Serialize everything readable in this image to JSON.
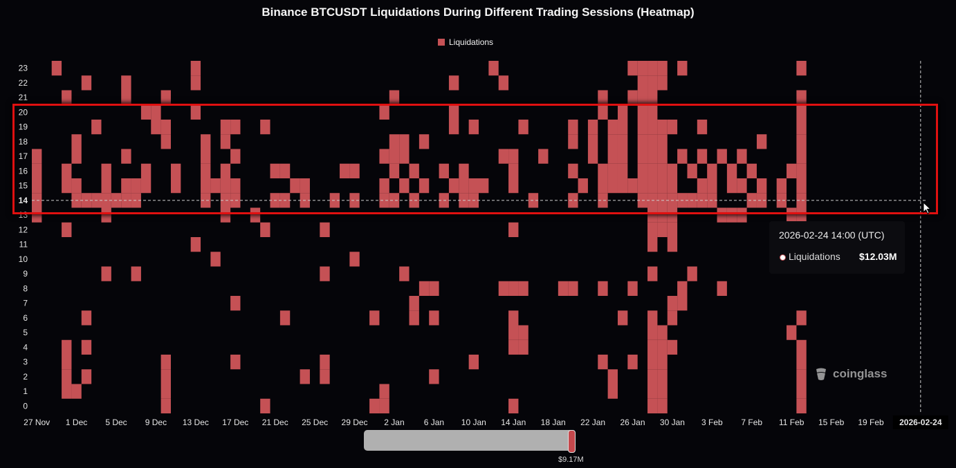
{
  "title": "Binance BTCUSDT Liquidations During Different Trading Sessions (Heatmap)",
  "legend": {
    "label": "Liquidations",
    "color": "#c55155"
  },
  "tooltip": {
    "date": "2026-02-24 14:00 (UTC)",
    "series": "Liquidations",
    "value": "$12.03M"
  },
  "watermark": {
    "text": "coinglass"
  },
  "scrollbar": {
    "value_label": "$9.17M"
  },
  "colors": {
    "background": "#050509",
    "cell": "#c55155",
    "cell_dark": "#a84448",
    "highlight": "#e01010"
  },
  "chart_data": {
    "type": "heatmap",
    "title": "Binance BTCUSDT Liquidations During Different Trading Sessions (Heatmap)",
    "series_name": "Liquidations",
    "x_start_date": "2025-11-27",
    "x_end_date": "2026-02-24",
    "x_tick_labels": [
      "27 Nov",
      "1 Dec",
      "5 Dec",
      "9 Dec",
      "13 Dec",
      "17 Dec",
      "21 Dec",
      "25 Dec",
      "29 Dec",
      "2 Jan",
      "6 Jan",
      "10 Jan",
      "14 Jan",
      "18 Jan",
      "22 Jan",
      "26 Jan",
      "30 Jan",
      "3 Feb",
      "7 Feb",
      "11 Feb",
      "15 Feb",
      "19 Feb",
      "2026-02-24"
    ],
    "y_labels": [
      "0",
      "1",
      "2",
      "3",
      "4",
      "5",
      "6",
      "7",
      "8",
      "9",
      "10",
      "11",
      "12",
      "13",
      "14",
      "15",
      "16",
      "17",
      "18",
      "19",
      "20",
      "21",
      "22",
      "23"
    ],
    "active_y": "14",
    "highlighted_x": "2026-02-24",
    "highlighted_hour": "14",
    "highlighted_value": "$12.03M",
    "cells": [
      [
        "2025-11-27",
        13
      ],
      [
        "2025-11-27",
        14
      ],
      [
        "2025-11-27",
        15
      ],
      [
        "2025-11-27",
        16
      ],
      [
        "2025-11-27",
        17
      ],
      [
        "2025-11-29",
        23
      ],
      [
        "2025-11-30",
        1
      ],
      [
        "2025-11-30",
        2
      ],
      [
        "2025-11-30",
        3
      ],
      [
        "2025-11-30",
        4
      ],
      [
        "2025-11-30",
        12
      ],
      [
        "2025-11-30",
        15
      ],
      [
        "2025-11-30",
        16
      ],
      [
        "2025-11-30",
        21
      ],
      [
        "2025-12-01",
        1
      ],
      [
        "2025-12-01",
        14
      ],
      [
        "2025-12-01",
        15
      ],
      [
        "2025-12-01",
        17
      ],
      [
        "2025-12-01",
        18
      ],
      [
        "2025-12-02",
        2
      ],
      [
        "2025-12-02",
        4
      ],
      [
        "2025-12-02",
        6
      ],
      [
        "2025-12-02",
        14
      ],
      [
        "2025-12-02",
        22
      ],
      [
        "2025-12-03",
        14
      ],
      [
        "2025-12-03",
        19
      ],
      [
        "2025-12-04",
        9
      ],
      [
        "2025-12-04",
        13
      ],
      [
        "2025-12-04",
        14
      ],
      [
        "2025-12-04",
        15
      ],
      [
        "2025-12-04",
        16
      ],
      [
        "2025-12-05",
        14
      ],
      [
        "2025-12-06",
        14
      ],
      [
        "2025-12-06",
        15
      ],
      [
        "2025-12-06",
        17
      ],
      [
        "2025-12-06",
        21
      ],
      [
        "2025-12-06",
        22
      ],
      [
        "2025-12-07",
        9
      ],
      [
        "2025-12-07",
        14
      ],
      [
        "2025-12-07",
        15
      ],
      [
        "2025-12-08",
        15
      ],
      [
        "2025-12-08",
        16
      ],
      [
        "2025-12-08",
        20
      ],
      [
        "2025-12-09",
        19
      ],
      [
        "2025-12-09",
        20
      ],
      [
        "2025-12-10",
        0
      ],
      [
        "2025-12-10",
        1
      ],
      [
        "2025-12-10",
        2
      ],
      [
        "2025-12-10",
        3
      ],
      [
        "2025-12-10",
        18
      ],
      [
        "2025-12-10",
        19
      ],
      [
        "2025-12-10",
        21
      ],
      [
        "2025-12-11",
        15
      ],
      [
        "2025-12-11",
        16
      ],
      [
        "2025-12-13",
        11
      ],
      [
        "2025-12-13",
        20
      ],
      [
        "2025-12-13",
        22
      ],
      [
        "2025-12-13",
        23
      ],
      [
        "2025-12-14",
        14
      ],
      [
        "2025-12-14",
        15
      ],
      [
        "2025-12-14",
        16
      ],
      [
        "2025-12-14",
        17
      ],
      [
        "2025-12-14",
        18
      ],
      [
        "2025-12-15",
        10
      ],
      [
        "2025-12-15",
        15
      ],
      [
        "2025-12-16",
        13
      ],
      [
        "2025-12-16",
        14
      ],
      [
        "2025-12-16",
        15
      ],
      [
        "2025-12-16",
        16
      ],
      [
        "2025-12-16",
        18
      ],
      [
        "2025-12-16",
        19
      ],
      [
        "2025-12-17",
        7
      ],
      [
        "2025-12-17",
        3
      ],
      [
        "2025-12-17",
        14
      ],
      [
        "2025-12-17",
        15
      ],
      [
        "2025-12-17",
        17
      ],
      [
        "2025-12-17",
        19
      ],
      [
        "2025-12-19",
        13
      ],
      [
        "2025-12-20",
        0
      ],
      [
        "2025-12-20",
        12
      ],
      [
        "2025-12-20",
        19
      ],
      [
        "2025-12-21",
        14
      ],
      [
        "2025-12-21",
        16
      ],
      [
        "2025-12-22",
        6
      ],
      [
        "2025-12-22",
        14
      ],
      [
        "2025-12-22",
        16
      ],
      [
        "2025-12-23",
        15
      ],
      [
        "2025-12-24",
        2
      ],
      [
        "2025-12-24",
        14
      ],
      [
        "2025-12-24",
        15
      ],
      [
        "2025-12-26",
        3
      ],
      [
        "2025-12-26",
        2
      ],
      [
        "2025-12-26",
        9
      ],
      [
        "2025-12-26",
        12
      ],
      [
        "2025-12-27",
        14
      ],
      [
        "2025-12-28",
        16
      ],
      [
        "2025-12-29",
        10
      ],
      [
        "2025-12-29",
        14
      ],
      [
        "2025-12-29",
        16
      ],
      [
        "2025-12-31",
        0
      ],
      [
        "2025-12-31",
        6
      ],
      [
        "2026-01-01",
        0
      ],
      [
        "2026-01-01",
        1
      ],
      [
        "2026-01-01",
        14
      ],
      [
        "2026-01-01",
        15
      ],
      [
        "2026-01-01",
        17
      ],
      [
        "2026-01-01",
        20
      ],
      [
        "2026-01-02",
        14
      ],
      [
        "2026-01-02",
        16
      ],
      [
        "2026-01-02",
        17
      ],
      [
        "2026-01-02",
        18
      ],
      [
        "2026-01-02",
        21
      ],
      [
        "2026-01-03",
        9
      ],
      [
        "2026-01-03",
        15
      ],
      [
        "2026-01-03",
        17
      ],
      [
        "2026-01-03",
        18
      ],
      [
        "2026-01-04",
        7
      ],
      [
        "2026-01-04",
        6
      ],
      [
        "2026-01-04",
        14
      ],
      [
        "2026-01-04",
        16
      ],
      [
        "2026-01-05",
        8
      ],
      [
        "2026-01-05",
        15
      ],
      [
        "2026-01-05",
        18
      ],
      [
        "2026-01-06",
        6
      ],
      [
        "2026-01-06",
        2
      ],
      [
        "2026-01-06",
        8
      ],
      [
        "2026-01-07",
        14
      ],
      [
        "2026-01-07",
        16
      ],
      [
        "2026-01-08",
        15
      ],
      [
        "2026-01-08",
        19
      ],
      [
        "2026-01-08",
        20
      ],
      [
        "2026-01-08",
        22
      ],
      [
        "2026-01-09",
        14
      ],
      [
        "2026-01-09",
        15
      ],
      [
        "2026-01-09",
        16
      ],
      [
        "2026-01-10",
        3
      ],
      [
        "2026-01-10",
        14
      ],
      [
        "2026-01-10",
        15
      ],
      [
        "2026-01-10",
        19
      ],
      [
        "2026-01-11",
        15
      ],
      [
        "2026-01-12",
        23
      ],
      [
        "2026-01-13",
        8
      ],
      [
        "2026-01-13",
        17
      ],
      [
        "2026-01-13",
        22
      ],
      [
        "2026-01-14",
        0
      ],
      [
        "2026-01-14",
        4
      ],
      [
        "2026-01-14",
        5
      ],
      [
        "2026-01-14",
        6
      ],
      [
        "2026-01-14",
        8
      ],
      [
        "2026-01-14",
        12
      ],
      [
        "2026-01-14",
        15
      ],
      [
        "2026-01-14",
        16
      ],
      [
        "2026-01-14",
        17
      ],
      [
        "2026-01-15",
        4
      ],
      [
        "2026-01-15",
        5
      ],
      [
        "2026-01-15",
        8
      ],
      [
        "2026-01-15",
        19
      ],
      [
        "2026-01-16",
        14
      ],
      [
        "2026-01-17",
        17
      ],
      [
        "2026-01-19",
        8
      ],
      [
        "2026-01-20",
        8
      ],
      [
        "2026-01-20",
        14
      ],
      [
        "2026-01-20",
        16
      ],
      [
        "2026-01-20",
        18
      ],
      [
        "2026-01-20",
        19
      ],
      [
        "2026-01-21",
        15
      ],
      [
        "2026-01-22",
        17
      ],
      [
        "2026-01-22",
        18
      ],
      [
        "2026-01-22",
        19
      ],
      [
        "2026-01-23",
        8
      ],
      [
        "2026-01-23",
        3
      ],
      [
        "2026-01-23",
        14
      ],
      [
        "2026-01-23",
        15
      ],
      [
        "2026-01-23",
        16
      ],
      [
        "2026-01-23",
        20
      ],
      [
        "2026-01-23",
        21
      ],
      [
        "2026-01-24",
        1
      ],
      [
        "2026-01-24",
        2
      ],
      [
        "2026-01-24",
        15
      ],
      [
        "2026-01-24",
        16
      ],
      [
        "2026-01-24",
        17
      ],
      [
        "2026-01-24",
        18
      ],
      [
        "2026-01-24",
        19
      ],
      [
        "2026-01-25",
        6
      ],
      [
        "2026-01-25",
        15
      ],
      [
        "2026-01-25",
        16
      ],
      [
        "2026-01-25",
        17
      ],
      [
        "2026-01-25",
        18
      ],
      [
        "2026-01-25",
        19
      ],
      [
        "2026-01-25",
        20
      ],
      [
        "2026-01-26",
        8
      ],
      [
        "2026-01-26",
        3
      ],
      [
        "2026-01-26",
        15
      ],
      [
        "2026-01-26",
        23
      ],
      [
        "2026-01-26",
        21
      ],
      [
        "2026-01-27",
        14
      ],
      [
        "2026-01-27",
        15
      ],
      [
        "2026-01-27",
        16
      ],
      [
        "2026-01-27",
        17
      ],
      [
        "2026-01-27",
        18
      ],
      [
        "2026-01-27",
        19
      ],
      [
        "2026-01-27",
        20
      ],
      [
        "2026-01-27",
        21
      ],
      [
        "2026-01-27",
        22
      ],
      [
        "2026-01-27",
        23
      ],
      [
        "2026-01-28",
        0
      ],
      [
        "2026-01-28",
        1
      ],
      [
        "2026-01-28",
        2
      ],
      [
        "2026-01-28",
        3
      ],
      [
        "2026-01-28",
        4
      ],
      [
        "2026-01-28",
        5
      ],
      [
        "2026-01-28",
        6
      ],
      [
        "2026-01-28",
        9
      ],
      [
        "2026-01-28",
        11
      ],
      [
        "2026-01-28",
        12
      ],
      [
        "2026-01-28",
        13
      ],
      [
        "2026-01-28",
        14
      ],
      [
        "2026-01-28",
        15
      ],
      [
        "2026-01-28",
        16
      ],
      [
        "2026-01-28",
        17
      ],
      [
        "2026-01-28",
        18
      ],
      [
        "2026-01-28",
        19
      ],
      [
        "2026-01-28",
        20
      ],
      [
        "2026-01-28",
        21
      ],
      [
        "2026-01-28",
        22
      ],
      [
        "2026-01-28",
        23
      ],
      [
        "2026-01-29",
        0
      ],
      [
        "2026-01-29",
        1
      ],
      [
        "2026-01-29",
        2
      ],
      [
        "2026-01-29",
        3
      ],
      [
        "2026-01-29",
        4
      ],
      [
        "2026-01-29",
        5
      ],
      [
        "2026-01-29",
        12
      ],
      [
        "2026-01-29",
        13
      ],
      [
        "2026-01-29",
        14
      ],
      [
        "2026-01-29",
        15
      ],
      [
        "2026-01-29",
        16
      ],
      [
        "2026-01-29",
        17
      ],
      [
        "2026-01-29",
        18
      ],
      [
        "2026-01-29",
        19
      ],
      [
        "2026-01-29",
        22
      ],
      [
        "2026-01-29",
        23
      ],
      [
        "2026-01-30",
        7
      ],
      [
        "2026-01-30",
        4
      ],
      [
        "2026-01-30",
        6
      ],
      [
        "2026-01-30",
        11
      ],
      [
        "2026-01-30",
        12
      ],
      [
        "2026-01-30",
        13
      ],
      [
        "2026-01-30",
        14
      ],
      [
        "2026-01-30",
        15
      ],
      [
        "2026-01-30",
        16
      ],
      [
        "2026-01-30",
        19
      ],
      [
        "2026-01-31",
        8
      ],
      [
        "2026-01-31",
        7
      ],
      [
        "2026-01-31",
        14
      ],
      [
        "2026-01-31",
        17
      ],
      [
        "2026-01-31",
        23
      ],
      [
        "2026-02-01",
        9
      ],
      [
        "2026-02-01",
        14
      ],
      [
        "2026-02-01",
        16
      ],
      [
        "2026-02-02",
        14
      ],
      [
        "2026-02-02",
        15
      ],
      [
        "2026-02-02",
        17
      ],
      [
        "2026-02-02",
        19
      ],
      [
        "2026-02-03",
        14
      ],
      [
        "2026-02-03",
        15
      ],
      [
        "2026-02-03",
        16
      ],
      [
        "2026-02-04",
        13
      ],
      [
        "2026-02-04",
        8
      ],
      [
        "2026-02-04",
        17
      ],
      [
        "2026-02-05",
        13
      ],
      [
        "2026-02-05",
        15
      ],
      [
        "2026-02-05",
        16
      ],
      [
        "2026-02-06",
        13
      ],
      [
        "2026-02-06",
        15
      ],
      [
        "2026-02-06",
        17
      ],
      [
        "2026-02-07",
        14
      ],
      [
        "2026-02-07",
        16
      ],
      [
        "2026-02-08",
        14
      ],
      [
        "2026-02-08",
        15
      ],
      [
        "2026-02-08",
        18
      ],
      [
        "2026-02-10",
        14
      ],
      [
        "2026-02-10",
        15
      ],
      [
        "2026-02-11",
        5
      ],
      [
        "2026-02-11",
        13
      ],
      [
        "2026-02-11",
        16
      ],
      [
        "2026-02-12",
        0
      ],
      [
        "2026-02-12",
        1
      ],
      [
        "2026-02-12",
        17
      ],
      [
        "2026-02-12",
        6
      ],
      [
        "2026-02-12",
        4
      ],
      [
        "2026-02-12",
        3
      ],
      [
        "2026-02-12",
        2
      ],
      [
        "2026-02-12",
        14
      ],
      [
        "2026-02-12",
        13
      ],
      [
        "2026-02-12",
        15
      ],
      [
        "2026-02-12",
        16
      ],
      [
        "2026-02-12",
        18
      ],
      [
        "2026-02-12",
        19
      ],
      [
        "2026-02-12",
        20
      ],
      [
        "2026-02-12",
        21
      ],
      [
        "2026-02-12",
        23
      ]
    ]
  }
}
